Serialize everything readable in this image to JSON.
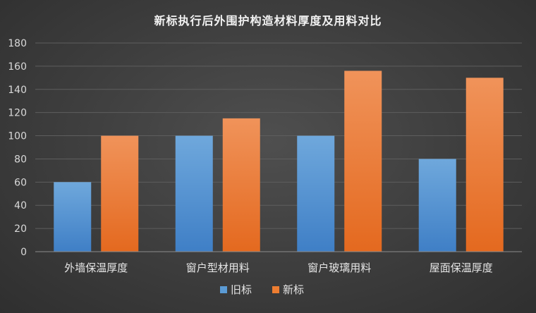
{
  "chart_data": {
    "type": "bar",
    "title": "新标执行后外围护构造材料厚度及用料对比",
    "categories": [
      "外墙保温厚度",
      "窗户型材用料",
      "窗户玻璃用料",
      "屋面保温厚度"
    ],
    "series": [
      {
        "name": "旧标",
        "values": [
          60,
          100,
          100,
          80
        ],
        "color": "#5b9bd5"
      },
      {
        "name": "新标",
        "values": [
          100,
          115,
          156,
          150
        ],
        "color": "#ed7d31"
      }
    ],
    "ylim": [
      0,
      180
    ],
    "yticks": [
      0,
      20,
      40,
      60,
      80,
      100,
      120,
      140,
      160,
      180
    ],
    "grid": true,
    "legend": "bottom"
  }
}
